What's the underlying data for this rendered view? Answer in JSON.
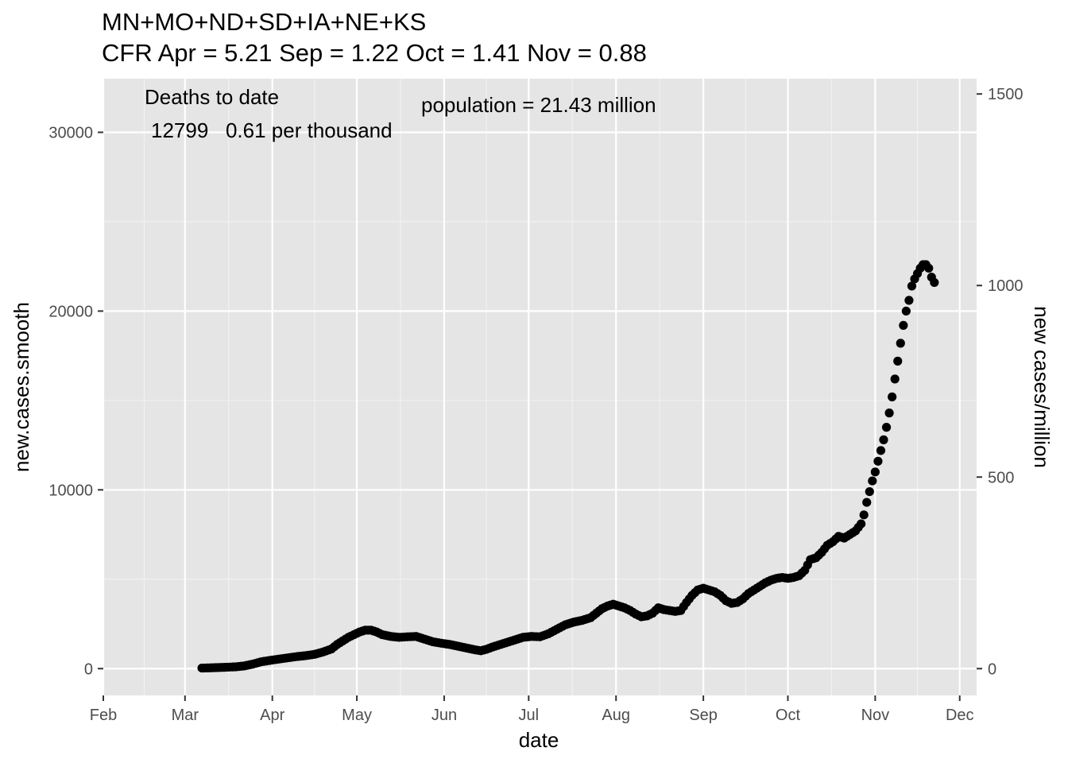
{
  "chart_data": {
    "type": "scatter",
    "title": "MN+MO+ND+SD+IA+NE+KS",
    "subtitle": "CFR Apr = 5.21  Sep = 1.22  Oct = 1.41  Nov = 0.88",
    "xlabel": "date",
    "ylabel": "new.cases.smooth",
    "y2label": "new cases/million",
    "x_ticks": [
      "Feb",
      "Mar",
      "Apr",
      "May",
      "Jun",
      "Jul",
      "Aug",
      "Sep",
      "Oct",
      "Nov",
      "Dec"
    ],
    "y_ticks": [
      "0",
      "10000",
      "20000",
      "30000"
    ],
    "y2_ticks": [
      "0",
      "500",
      "1000",
      "1500"
    ],
    "xlim": [
      "2020-02-01",
      "2020-12-07"
    ],
    "ylim": [
      -1500,
      33000
    ],
    "grid": true,
    "annotations": {
      "deaths_heading": "Deaths to date",
      "deaths_line": "12799   0.61 per thousand",
      "population": "population = 21.43 million"
    },
    "points": [
      [
        "2020-03-07",
        30
      ],
      [
        "2020-03-10",
        45
      ],
      [
        "2020-03-13",
        60
      ],
      [
        "2020-03-16",
        80
      ],
      [
        "2020-03-19",
        100
      ],
      [
        "2020-03-22",
        150
      ],
      [
        "2020-03-25",
        250
      ],
      [
        "2020-03-28",
        380
      ],
      [
        "2020-04-01",
        480
      ],
      [
        "2020-04-05",
        570
      ],
      [
        "2020-04-09",
        660
      ],
      [
        "2020-04-13",
        730
      ],
      [
        "2020-04-16",
        800
      ],
      [
        "2020-04-19",
        930
      ],
      [
        "2020-04-22",
        1100
      ],
      [
        "2020-04-24",
        1350
      ],
      [
        "2020-04-26",
        1550
      ],
      [
        "2020-04-28",
        1750
      ],
      [
        "2020-04-30",
        1900
      ],
      [
        "2020-05-02",
        2050
      ],
      [
        "2020-05-04",
        2150
      ],
      [
        "2020-05-06",
        2150
      ],
      [
        "2020-05-08",
        2050
      ],
      [
        "2020-05-10",
        1900
      ],
      [
        "2020-05-13",
        1800
      ],
      [
        "2020-05-16",
        1750
      ],
      [
        "2020-05-19",
        1780
      ],
      [
        "2020-05-22",
        1800
      ],
      [
        "2020-05-25",
        1650
      ],
      [
        "2020-05-28",
        1500
      ],
      [
        "2020-05-31",
        1420
      ],
      [
        "2020-06-03",
        1350
      ],
      [
        "2020-06-06",
        1250
      ],
      [
        "2020-06-09",
        1150
      ],
      [
        "2020-06-12",
        1050
      ],
      [
        "2020-06-14",
        1000
      ],
      [
        "2020-06-16",
        1080
      ],
      [
        "2020-06-18",
        1200
      ],
      [
        "2020-06-20",
        1300
      ],
      [
        "2020-06-23",
        1450
      ],
      [
        "2020-06-26",
        1600
      ],
      [
        "2020-06-29",
        1750
      ],
      [
        "2020-07-02",
        1800
      ],
      [
        "2020-07-05",
        1780
      ],
      [
        "2020-07-08",
        1950
      ],
      [
        "2020-07-11",
        2200
      ],
      [
        "2020-07-14",
        2450
      ],
      [
        "2020-07-17",
        2600
      ],
      [
        "2020-07-20",
        2700
      ],
      [
        "2020-07-23",
        2850
      ],
      [
        "2020-07-25",
        3100
      ],
      [
        "2020-07-27",
        3350
      ],
      [
        "2020-07-29",
        3500
      ],
      [
        "2020-07-31",
        3600
      ],
      [
        "2020-08-02",
        3500
      ],
      [
        "2020-08-04",
        3400
      ],
      [
        "2020-08-06",
        3250
      ],
      [
        "2020-08-08",
        3050
      ],
      [
        "2020-08-10",
        2900
      ],
      [
        "2020-08-12",
        2950
      ],
      [
        "2020-08-14",
        3100
      ],
      [
        "2020-08-16",
        3400
      ],
      [
        "2020-08-18",
        3300
      ],
      [
        "2020-08-20",
        3250
      ],
      [
        "2020-08-22",
        3200
      ],
      [
        "2020-08-24",
        3250
      ],
      [
        "2020-08-26",
        3700
      ],
      [
        "2020-08-28",
        4100
      ],
      [
        "2020-08-30",
        4400
      ],
      [
        "2020-09-01",
        4500
      ],
      [
        "2020-09-03",
        4400
      ],
      [
        "2020-09-05",
        4300
      ],
      [
        "2020-09-07",
        4100
      ],
      [
        "2020-09-09",
        3800
      ],
      [
        "2020-09-11",
        3650
      ],
      [
        "2020-09-13",
        3700
      ],
      [
        "2020-09-15",
        3900
      ],
      [
        "2020-09-17",
        4200
      ],
      [
        "2020-09-19",
        4400
      ],
      [
        "2020-09-21",
        4600
      ],
      [
        "2020-09-23",
        4800
      ],
      [
        "2020-09-25",
        4950
      ],
      [
        "2020-09-27",
        5050
      ],
      [
        "2020-09-29",
        5100
      ],
      [
        "2020-10-01",
        5050
      ],
      [
        "2020-10-03",
        5100
      ],
      [
        "2020-10-05",
        5200
      ],
      [
        "2020-10-07",
        5500
      ],
      [
        "2020-10-09",
        6100
      ],
      [
        "2020-10-11",
        6200
      ],
      [
        "2020-10-13",
        6500
      ],
      [
        "2020-10-15",
        6900
      ],
      [
        "2020-10-17",
        7100
      ],
      [
        "2020-10-19",
        7400
      ],
      [
        "2020-10-21",
        7300
      ],
      [
        "2020-10-23",
        7500
      ],
      [
        "2020-10-25",
        7700
      ],
      [
        "2020-10-27",
        8100
      ],
      [
        "2020-10-28",
        8600
      ],
      [
        "2020-10-29",
        9300
      ],
      [
        "2020-10-30",
        9900
      ],
      [
        "2020-10-31",
        10500
      ],
      [
        "2020-11-01",
        11000
      ],
      [
        "2020-11-02",
        11600
      ],
      [
        "2020-11-03",
        12200
      ],
      [
        "2020-11-04",
        12800
      ],
      [
        "2020-11-05",
        13500
      ],
      [
        "2020-11-06",
        14300
      ],
      [
        "2020-11-07",
        15200
      ],
      [
        "2020-11-08",
        16200
      ],
      [
        "2020-11-09",
        17200
      ],
      [
        "2020-11-10",
        18200
      ],
      [
        "2020-11-11",
        19200
      ],
      [
        "2020-11-12",
        20000
      ],
      [
        "2020-11-13",
        20600
      ],
      [
        "2020-11-14",
        21400
      ],
      [
        "2020-11-15",
        21800
      ],
      [
        "2020-11-16",
        22100
      ],
      [
        "2020-11-17",
        22400
      ],
      [
        "2020-11-18",
        22600
      ],
      [
        "2020-11-19",
        22600
      ],
      [
        "2020-11-20",
        22400
      ],
      [
        "2020-11-21",
        21900
      ],
      [
        "2020-11-22",
        21600
      ]
    ]
  }
}
